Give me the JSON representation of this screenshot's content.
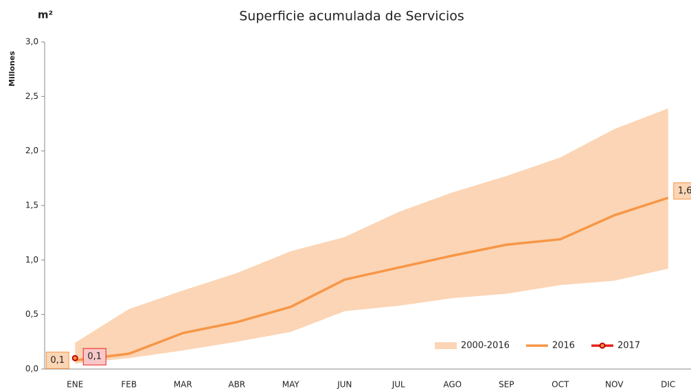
{
  "chart_data": {
    "type": "line",
    "title": "Superficie acumulada de Servicios",
    "unit_label": "m²",
    "y_axis_label": "Millones",
    "categories": [
      "ENE",
      "FEB",
      "MAR",
      "ABR",
      "MAY",
      "JUN",
      "JUL",
      "AGO",
      "SEP",
      "OCT",
      "NOV",
      "DIC"
    ],
    "series": [
      {
        "name": "2000-2016",
        "color": "#fbd5b5",
        "kind": "band",
        "low": [
          0.05,
          0.1,
          0.17,
          0.25,
          0.34,
          0.53,
          0.58,
          0.65,
          0.69,
          0.77,
          0.81,
          0.92
        ],
        "high": [
          0.24,
          0.55,
          0.72,
          0.88,
          1.08,
          1.21,
          1.44,
          1.62,
          1.77,
          1.94,
          2.2,
          2.39
        ]
      },
      {
        "name": "2016",
        "color": "#f79646",
        "values": [
          0.08,
          0.14,
          0.33,
          0.43,
          0.57,
          0.82,
          0.93,
          1.04,
          1.14,
          1.19,
          1.41,
          1.57
        ],
        "value_labels": [
          "0,1",
          null,
          null,
          null,
          null,
          null,
          null,
          null,
          null,
          null,
          null,
          "1,6"
        ]
      },
      {
        "name": "2017",
        "color": "#e8201c",
        "values": [
          0.1,
          null,
          null,
          null,
          null,
          null,
          null,
          null,
          null,
          null,
          null,
          null
        ],
        "value_labels": [
          "0,1",
          null,
          null,
          null,
          null,
          null,
          null,
          null,
          null,
          null,
          null,
          null
        ]
      }
    ],
    "ylim": [
      0,
      3
    ],
    "yticks": [
      {
        "value": 0,
        "label": "0,0"
      },
      {
        "value": 0.5,
        "label": "0,5"
      },
      {
        "value": 1,
        "label": "1,0"
      },
      {
        "value": 1.5,
        "label": "1,5"
      },
      {
        "value": 2,
        "label": "2,0"
      },
      {
        "value": 2.5,
        "label": "2,5"
      },
      {
        "value": 3,
        "label": "3,0"
      }
    ],
    "grid": false,
    "legend": "bottom-right"
  }
}
